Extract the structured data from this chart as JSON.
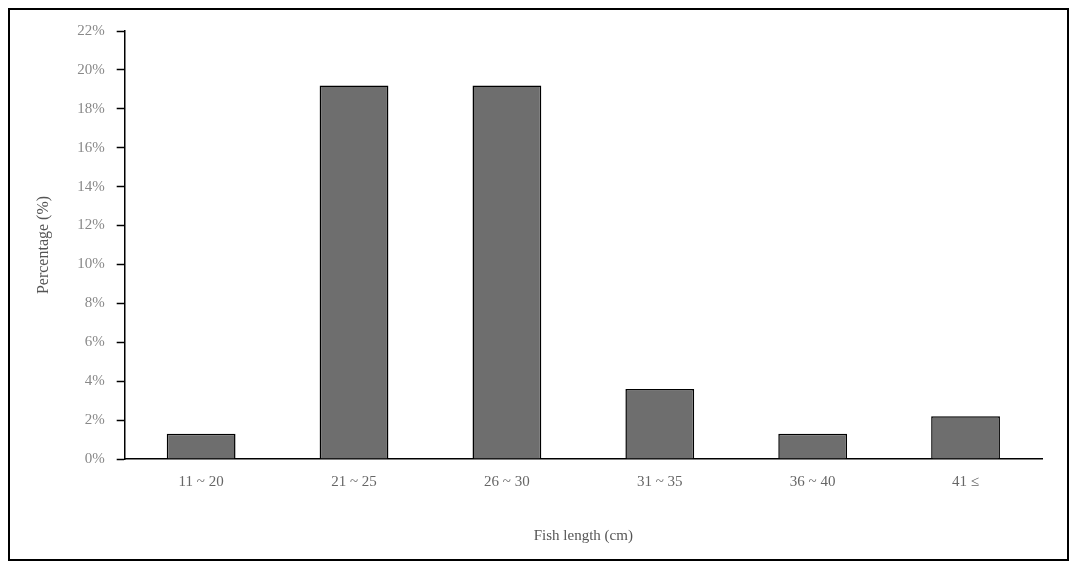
{
  "chart_data": {
    "type": "bar",
    "xlabel": "Fish length (cm)",
    "ylabel": "Percentage (%)",
    "categories": [
      "11 ~ 20",
      "21 ~ 25",
      "26 ~ 30",
      "31 ~ 35",
      "36 ~ 40",
      "41 ≤"
    ],
    "values": [
      1.3,
      19.2,
      19.2,
      3.6,
      1.3,
      2.2
    ],
    "color": "#6e6e6e",
    "ylim": [
      0,
      22
    ],
    "yticks": [
      {
        "value": 0,
        "label": "0%"
      },
      {
        "value": 2,
        "label": "2%"
      },
      {
        "value": 4,
        "label": "4%"
      },
      {
        "value": 6,
        "label": "6%"
      },
      {
        "value": 8,
        "label": "8%"
      },
      {
        "value": 10,
        "label": "10%"
      },
      {
        "value": 12,
        "label": "12%"
      },
      {
        "value": 14,
        "label": "14%"
      },
      {
        "value": 16,
        "label": "16%"
      },
      {
        "value": 18,
        "label": "18%"
      },
      {
        "value": 20,
        "label": "20%"
      },
      {
        "value": 22,
        "label": "22%"
      }
    ],
    "grid": false,
    "legend": false
  }
}
